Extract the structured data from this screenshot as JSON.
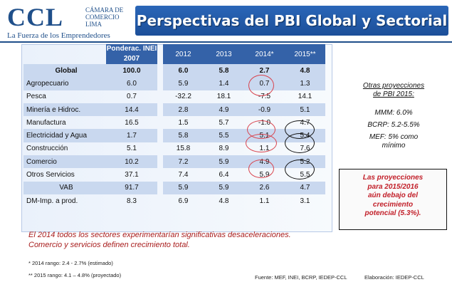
{
  "header": {
    "logo_mark": "CCL",
    "logo_org": "CÁMARA DE COMERCIO LIMA",
    "logo_tagline": "La Fuerza de los Emprendedores",
    "title": "Perspectivas del PBI Global y Sectorial"
  },
  "table": {
    "headers": {
      "pond": "Ponderac. INEI 2007",
      "y2012": "2012",
      "y2013": "2013",
      "y2014": "2014*",
      "y2015": "2015**"
    },
    "rows": [
      {
        "label": "Global",
        "pond": "100.0",
        "y2012": "6.0",
        "y2013": "5.8",
        "y2014": "2.7",
        "y2015": "4.8"
      },
      {
        "label": "Agropecuario",
        "pond": "6.0",
        "y2012": "5.9",
        "y2013": "1.4",
        "y2014": "0.7",
        "y2015": "1.3"
      },
      {
        "label": "Pesca",
        "pond": "0.7",
        "y2012": "-32.2",
        "y2013": "18.1",
        "y2014": "-7.5",
        "y2015": "14.1"
      },
      {
        "label": "Minería e Hidroc.",
        "pond": "14.4",
        "y2012": "2.8",
        "y2013": "4.9",
        "y2014": "-0.9",
        "y2015": "5.1"
      },
      {
        "label": "Manufactura",
        "pond": "16.5",
        "y2012": "1.5",
        "y2013": "5.7",
        "y2014": "-1.0",
        "y2015": "4.7"
      },
      {
        "label": "Electricidad y Agua",
        "pond": "1.7",
        "y2012": "5.8",
        "y2013": "5.5",
        "y2014": "5.1",
        "y2015": "5.4"
      },
      {
        "label": "Construcción",
        "pond": "5.1",
        "y2012": "15.8",
        "y2013": "8.9",
        "y2014": "1.1",
        "y2015": "7.6"
      },
      {
        "label": "Comercio",
        "pond": "10.2",
        "y2012": "7.2",
        "y2013": "5.9",
        "y2014": "4.9",
        "y2015": "5.2"
      },
      {
        "label": "Otros Servicios",
        "pond": "37.1",
        "y2012": "7.4",
        "y2013": "6.4",
        "y2014": "5.9",
        "y2015": "5.5"
      },
      {
        "label": "VAB",
        "pond": "91.7",
        "y2012": "5.9",
        "y2013": "5.9",
        "y2014": "2.6",
        "y2015": "4.7"
      },
      {
        "label": "DM-Imp. a prod.",
        "pond": "8.3",
        "y2012": "6.9",
        "y2013": "4.8",
        "y2014": "1.1",
        "y2015": "3.1"
      }
    ]
  },
  "side": {
    "title_l1": "Otras proyecciones",
    "title_l2": "de PBI 2015:",
    "mmm": "MMM: 6.0%",
    "bcrp": "BCRP: 5.2-5.5%",
    "mef_l1": "MEF: 5% como",
    "mef_l2": "mínimo",
    "box_l1": "Las proyecciones",
    "box_l2": "para 2015/2016",
    "box_l3": "aún debajo del",
    "box_l4": "crecimiento",
    "box_l5": "potencial (5.3%)."
  },
  "notes": {
    "line1": "El 2014 todos los sectores experimentarían significativas desaceleraciones.",
    "line2": "Comercio y servicios definen crecimiento total.",
    "foot1": "* 2014 rango: 2.4 - 2.7% (estimado)",
    "foot2": "** 2015 rango: 4.1 – 4.8% (proyectado)",
    "source": "Fuente: MEF, INEI, BCRP, IEDEP-CCL",
    "elab": "Elaboración: IEDEP-CCL"
  },
  "colors": {
    "brand_blue": "#1f4f8a",
    "header_blue": "#3462a8",
    "row_shade": "#c9d8ef",
    "highlight_red": "#d9434d",
    "note_red": "#a81d1d"
  }
}
